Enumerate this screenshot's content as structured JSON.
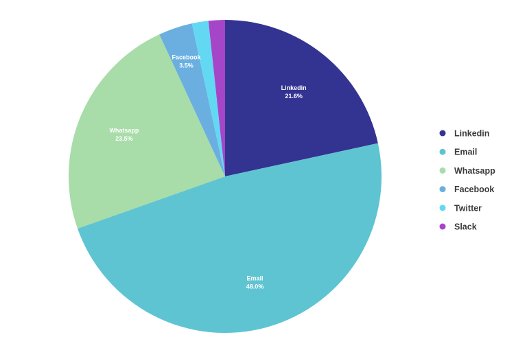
{
  "chart_data": {
    "type": "pie",
    "title": "",
    "start": "top",
    "direction": "clockwise",
    "legend_position": "right",
    "slices": [
      {
        "label": "Linkedin",
        "value": 21.6,
        "value_label": "21.6%",
        "color": "#333391",
        "show_label": true
      },
      {
        "label": "Email",
        "value": 48.0,
        "value_label": "48.0%",
        "color": "#5fc4d1",
        "show_label": true
      },
      {
        "label": "Whatsapp",
        "value": 23.5,
        "value_label": "23.5%",
        "color": "#a8dca8",
        "show_label": true
      },
      {
        "label": "Facebook",
        "value": 3.5,
        "value_label": "3.5%",
        "color": "#6aafe0",
        "show_label": true
      },
      {
        "label": "Twitter",
        "value": 1.7,
        "value_label": "",
        "color": "#63d8f2",
        "show_label": false
      },
      {
        "label": "Slack",
        "value": 1.7,
        "value_label": "",
        "color": "#a546c9",
        "show_label": false
      }
    ]
  }
}
